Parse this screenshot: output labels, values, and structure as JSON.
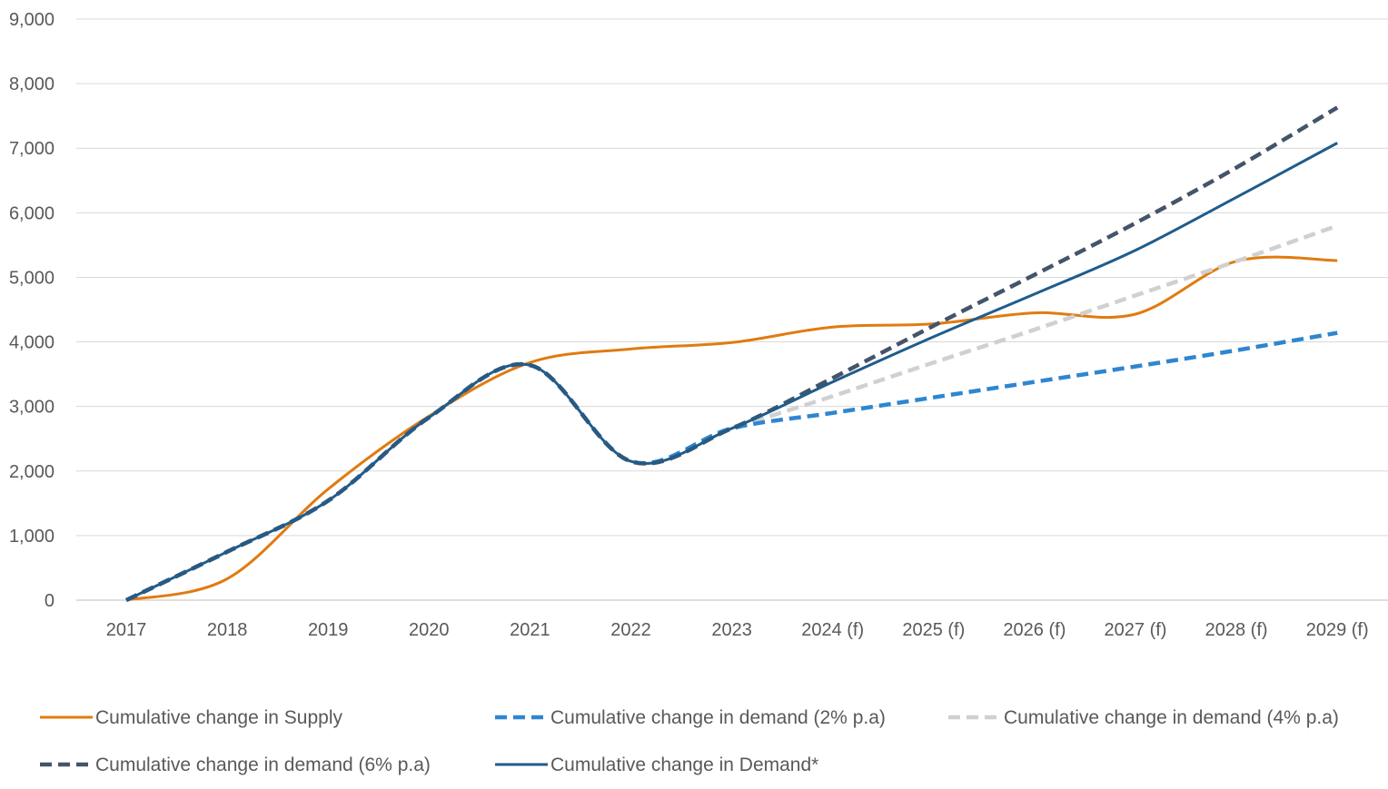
{
  "chart_data": {
    "type": "line",
    "title": "",
    "xlabel": "",
    "ylabel": "",
    "categories": [
      "2017",
      "2018",
      "2019",
      "2020",
      "2021",
      "2022",
      "2023",
      "2024 (f)",
      "2025 (f)",
      "2026 (f)",
      "2027 (f)",
      "2028 (f)",
      "2029 (f)"
    ],
    "ylim": [
      0,
      9000
    ],
    "yticks": [
      0,
      1000,
      2000,
      3000,
      4000,
      5000,
      6000,
      7000,
      8000,
      9000
    ],
    "ytick_labels": [
      "0",
      "1,000",
      "2,000",
      "3,000",
      "4,000",
      "5,000",
      "6,000",
      "7,000",
      "8,000",
      "9,000"
    ],
    "grid": true,
    "legend_position": "bottom",
    "series": [
      {
        "name": "Cumulative change in Supply",
        "color": "#E07B10",
        "dash": "solid",
        "values": [
          0,
          330,
          1720,
          2850,
          3680,
          3890,
          3990,
          4230,
          4280,
          4450,
          4430,
          5250,
          5260
        ]
      },
      {
        "name": "Cumulative change in demand (2% p.a)",
        "color": "#2E86D0",
        "dash": "dashed",
        "values": [
          0,
          750,
          1540,
          2830,
          3640,
          2150,
          2660,
          2900,
          3140,
          3380,
          3620,
          3870,
          4140
        ]
      },
      {
        "name": "Cumulative change in demand (4% p.a)",
        "color": "#D0D0D0",
        "dash": "dashed",
        "values": [
          0,
          750,
          1540,
          2830,
          3640,
          2150,
          2660,
          3160,
          3680,
          4190,
          4720,
          5250,
          5800
        ]
      },
      {
        "name": "Cumulative change in demand (6% p.a)",
        "color": "#44546A",
        "dash": "dashed",
        "values": [
          0,
          750,
          1540,
          2830,
          3640,
          2150,
          2660,
          3440,
          4250,
          5040,
          5840,
          6700,
          7630
        ]
      },
      {
        "name": "Cumulative change in Demand*",
        "color": "#1F5C8B",
        "dash": "solid",
        "values": [
          0,
          750,
          1540,
          2830,
          3640,
          2150,
          2660,
          3380,
          4080,
          4740,
          5420,
          6240,
          7080
        ]
      }
    ]
  }
}
